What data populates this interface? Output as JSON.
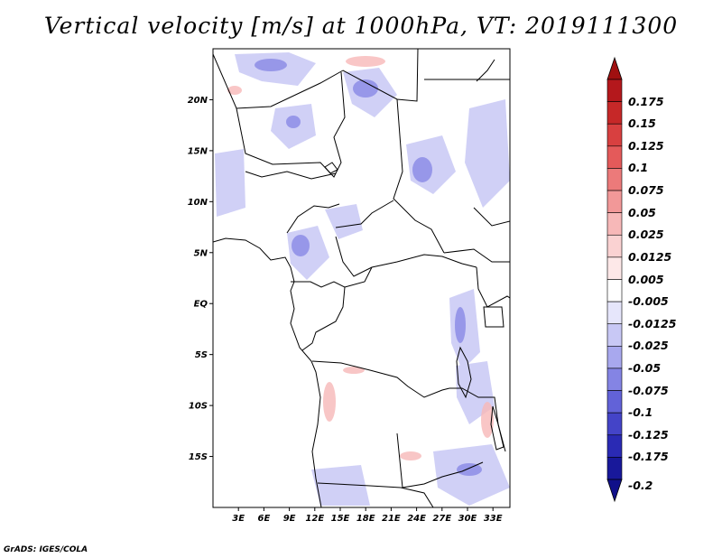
{
  "title": "Vertical velocity [m/s] at 1000hPa, VT: 2019111300",
  "credit": "GrADS: IGES/COLA",
  "map": {
    "lon_range": [
      0,
      35
    ],
    "lat_range": [
      -20,
      25
    ],
    "lat_ticks": [
      {
        "value": 20,
        "label": "20N"
      },
      {
        "value": 15,
        "label": "15N"
      },
      {
        "value": 10,
        "label": "10N"
      },
      {
        "value": 5,
        "label": "5N"
      },
      {
        "value": 0,
        "label": "EQ"
      },
      {
        "value": -5,
        "label": "5S"
      },
      {
        "value": -10,
        "label": "10S"
      },
      {
        "value": -15,
        "label": "15S"
      }
    ],
    "lon_ticks": [
      {
        "value": 3,
        "label": "3E"
      },
      {
        "value": 6,
        "label": "6E"
      },
      {
        "value": 9,
        "label": "9E"
      },
      {
        "value": 12,
        "label": "12E"
      },
      {
        "value": 15,
        "label": "15E"
      },
      {
        "value": 18,
        "label": "18E"
      },
      {
        "value": 21,
        "label": "21E"
      },
      {
        "value": 24,
        "label": "24E"
      },
      {
        "value": 27,
        "label": "27E"
      },
      {
        "value": 30,
        "label": "30E"
      },
      {
        "value": 33,
        "label": "33E"
      }
    ]
  },
  "colorbar": {
    "levels": [
      {
        "label": "0.175",
        "color": "#b4181c"
      },
      {
        "label": "0.15",
        "color": "#c62828"
      },
      {
        "label": "0.125",
        "color": "#d84040"
      },
      {
        "label": "0.1",
        "color": "#e45a5a"
      },
      {
        "label": "0.075",
        "color": "#ec7a7a"
      },
      {
        "label": "0.05",
        "color": "#f29898"
      },
      {
        "label": "0.025",
        "color": "#f7b8b8"
      },
      {
        "label": "0.0125",
        "color": "#fad2d2"
      },
      {
        "label": "0.005",
        "color": "#fde8e8"
      },
      {
        "label": "-0.005",
        "color": "#ffffff"
      },
      {
        "label": "-0.0125",
        "color": "#e6e6fb"
      },
      {
        "label": "-0.025",
        "color": "#c8c8f5"
      },
      {
        "label": "-0.05",
        "color": "#a8a8ee"
      },
      {
        "label": "-0.075",
        "color": "#8484e4"
      },
      {
        "label": "-0.1",
        "color": "#6262d8"
      },
      {
        "label": "-0.125",
        "color": "#4444c8"
      },
      {
        "label": "-0.175",
        "color": "#2a2ab4"
      },
      {
        "label": "-0.2",
        "color": "#18189a"
      }
    ],
    "top_color": "#a01010",
    "bottom_color": "#10108a"
  }
}
